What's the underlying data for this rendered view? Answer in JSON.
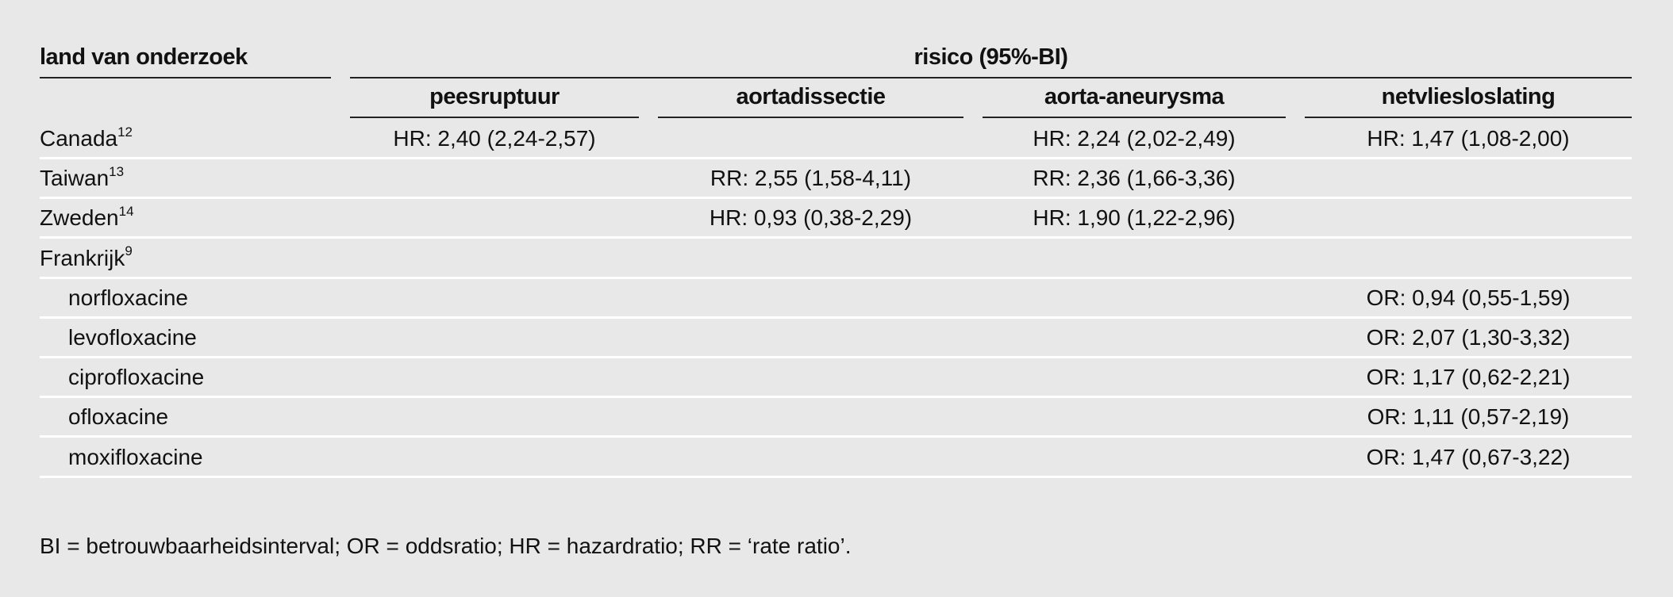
{
  "header": {
    "country_label": "land van onderzoek",
    "risk_label": "risico (95%-BI)",
    "columns": [
      "peesruptuur",
      "aortadissectie",
      "aorta-aneurysma",
      "netvliesloslating"
    ]
  },
  "rows": [
    {
      "label": "Canada",
      "ref": "12",
      "indent": false,
      "values": [
        "HR: 2,40 (2,24-2,57)",
        "",
        "HR: 2,24 (2,02-2,49)",
        "HR: 1,47 (1,08-2,00)"
      ]
    },
    {
      "label": "Taiwan",
      "ref": "13",
      "indent": false,
      "values": [
        "",
        "RR: 2,55 (1,58-4,11)",
        "RR: 2,36 (1,66-3,36)",
        ""
      ]
    },
    {
      "label": "Zweden",
      "ref": "14",
      "indent": false,
      "values": [
        "",
        "HR: 0,93 (0,38-2,29)",
        "HR: 1,90 (1,22-2,96)",
        ""
      ]
    },
    {
      "label": "Frankrijk",
      "ref": "9",
      "indent": false,
      "values": [
        "",
        "",
        "",
        ""
      ]
    },
    {
      "label": "norfloxacine",
      "ref": "",
      "indent": true,
      "values": [
        "",
        "",
        "",
        "OR: 0,94 (0,55-1,59)"
      ]
    },
    {
      "label": "levofloxacine",
      "ref": "",
      "indent": true,
      "values": [
        "",
        "",
        "",
        "OR: 2,07 (1,30-3,32)"
      ]
    },
    {
      "label": "ciprofloxacine",
      "ref": "",
      "indent": true,
      "values": [
        "",
        "",
        "",
        "OR: 1,17 (0,62-2,21)"
      ]
    },
    {
      "label": "ofloxacine",
      "ref": "",
      "indent": true,
      "values": [
        "",
        "",
        "",
        "OR: 1,11 (0,57-2,19)"
      ]
    },
    {
      "label": "moxifloxacine",
      "ref": "",
      "indent": true,
      "values": [
        "",
        "",
        "",
        "OR: 1,47 (0,67-3,22)"
      ]
    }
  ],
  "footnote": "BI = betrouwbaarheidsinterval; OR = oddsratio; HR = hazardratio; RR = ‘rate ratio’."
}
